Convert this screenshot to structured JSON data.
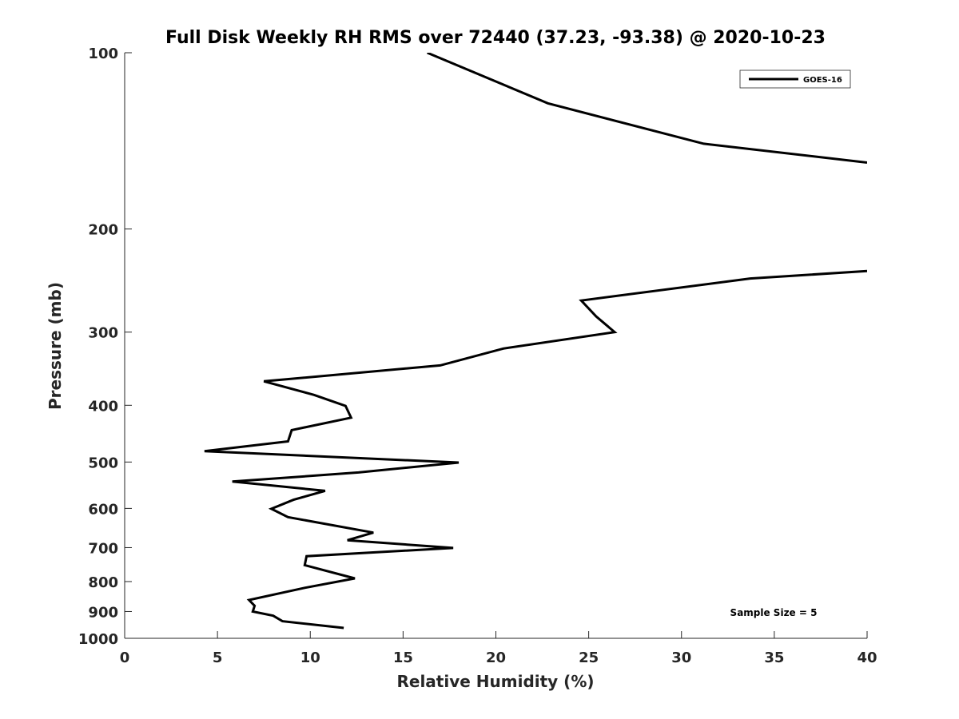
{
  "chart_data": {
    "type": "line",
    "title": "Full Disk Weekly RH RMS over 72440 (37.23, -93.38) @ 2020-10-23",
    "xlabel": "Relative Humidity (%)",
    "ylabel": "Pressure (mb)",
    "xlim": [
      0,
      40
    ],
    "ylim": [
      100,
      1000
    ],
    "yscale": "log",
    "y_reversed": true,
    "grid": false,
    "legend_position": "top-right",
    "xticks": [
      0,
      5,
      10,
      15,
      20,
      25,
      30,
      35,
      40
    ],
    "xtick_labels": [
      "0",
      "5",
      "10",
      "15",
      "20",
      "25",
      "30",
      "35",
      "40"
    ],
    "yticks": [
      100,
      200,
      300,
      400,
      500,
      600,
      700,
      800,
      900,
      1000
    ],
    "ytick_labels": [
      "100",
      "200",
      "300",
      "400",
      "500",
      "600",
      "700",
      "800",
      "900",
      "1000"
    ],
    "annotation": "Sample Size = 5",
    "series": [
      {
        "name": "GOES-16",
        "color": "#000000",
        "segments": [
          [
            {
              "x": 16.3,
              "y": 100
            },
            {
              "x": 22.8,
              "y": 122
            },
            {
              "x": 31.2,
              "y": 143
            },
            {
              "x": 40.0,
              "y": 154
            }
          ],
          [
            {
              "x": 40.0,
              "y": 236
            },
            {
              "x": 33.7,
              "y": 243
            },
            {
              "x": 24.6,
              "y": 265
            },
            {
              "x": 25.4,
              "y": 282
            },
            {
              "x": 26.4,
              "y": 300
            },
            {
              "x": 20.4,
              "y": 320
            },
            {
              "x": 17.0,
              "y": 342
            },
            {
              "x": 7.5,
              "y": 364
            },
            {
              "x": 10.2,
              "y": 384
            },
            {
              "x": 11.9,
              "y": 401
            },
            {
              "x": 12.2,
              "y": 420
            },
            {
              "x": 9.0,
              "y": 441
            },
            {
              "x": 8.8,
              "y": 461
            },
            {
              "x": 4.3,
              "y": 479
            },
            {
              "x": 18.0,
              "y": 501
            },
            {
              "x": 12.6,
              "y": 521
            },
            {
              "x": 5.8,
              "y": 540
            },
            {
              "x": 10.8,
              "y": 560
            },
            {
              "x": 9.1,
              "y": 580
            },
            {
              "x": 7.9,
              "y": 601
            },
            {
              "x": 8.8,
              "y": 621
            },
            {
              "x": 13.4,
              "y": 660
            },
            {
              "x": 12.0,
              "y": 680
            },
            {
              "x": 17.7,
              "y": 701
            },
            {
              "x": 9.8,
              "y": 724
            },
            {
              "x": 9.7,
              "y": 750
            },
            {
              "x": 12.4,
              "y": 790
            },
            {
              "x": 9.7,
              "y": 820
            },
            {
              "x": 6.7,
              "y": 860
            },
            {
              "x": 7.0,
              "y": 880
            },
            {
              "x": 6.9,
              "y": 900
            },
            {
              "x": 8.0,
              "y": 915
            },
            {
              "x": 8.5,
              "y": 935
            },
            {
              "x": 11.8,
              "y": 960
            }
          ]
        ]
      }
    ]
  }
}
